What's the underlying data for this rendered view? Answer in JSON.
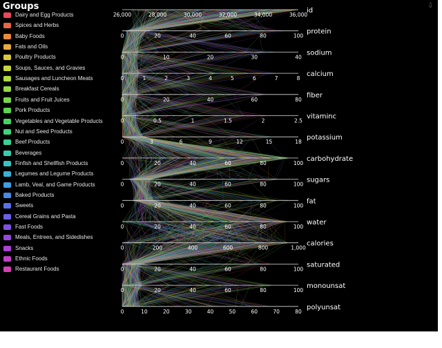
{
  "legend": {
    "title": "Groups",
    "items": [
      {
        "label": "Dairy and Egg Products",
        "color": "#e8475f"
      },
      {
        "label": "Spices and Herbs",
        "color": "#ea6445"
      },
      {
        "label": "Baby Foods",
        "color": "#e88a3a"
      },
      {
        "label": "Fats and Oils",
        "color": "#e8ab3a"
      },
      {
        "label": "Poultry Products",
        "color": "#ddc63c"
      },
      {
        "label": "Soups, Sauces, and Gravies",
        "color": "#c8d43c"
      },
      {
        "label": "Sausages and Luncheon Meats",
        "color": "#b0d83c"
      },
      {
        "label": "Breakfast Cereals",
        "color": "#96d83e"
      },
      {
        "label": "Fruits and Fruit Juices",
        "color": "#78d846"
      },
      {
        "label": "Pork Products",
        "color": "#5cd650"
      },
      {
        "label": "Vegetables and Vegetable Products",
        "color": "#48d462"
      },
      {
        "label": "Nut and Seed Products",
        "color": "#3ed27c"
      },
      {
        "label": "Beef Products",
        "color": "#3ad096"
      },
      {
        "label": "Beverages",
        "color": "#38ccac"
      },
      {
        "label": "Finfish and Shellfish Products",
        "color": "#36c4c2"
      },
      {
        "label": "Legumes and Legume Products",
        "color": "#38b2d6"
      },
      {
        "label": "Lamb, Veal, and Game Products",
        "color": "#3e9ee0"
      },
      {
        "label": "Baked Products",
        "color": "#4888e6"
      },
      {
        "label": "Sweets",
        "color": "#5872ea"
      },
      {
        "label": "Cereal Grains and Pasta",
        "color": "#6a60ea"
      },
      {
        "label": "Fast Foods",
        "color": "#7e52e6"
      },
      {
        "label": "Meals, Entrees, and Sidedishes",
        "color": "#9448de"
      },
      {
        "label": "Snacks",
        "color": "#aa42d4"
      },
      {
        "label": "Ethnic Foods",
        "color": "#c040c6"
      },
      {
        "label": "Restaurant Foods",
        "color": "#d640b4"
      }
    ]
  },
  "chart_data": {
    "type": "parallel",
    "axes": [
      {
        "name": "id",
        "range": [
          26000,
          36000
        ],
        "ticks": [
          "26,000",
          "28,000",
          "30,000",
          "32,000",
          "34,000",
          "36,000"
        ]
      },
      {
        "name": "protein",
        "range": [
          0,
          100
        ],
        "ticks": [
          "0",
          "20",
          "40",
          "60",
          "80",
          "100"
        ]
      },
      {
        "name": "sodium",
        "range": [
          0,
          40
        ],
        "ticks": [
          "0",
          "10",
          "20",
          "30",
          "40"
        ]
      },
      {
        "name": "calcium",
        "range": [
          0,
          8
        ],
        "ticks": [
          "0",
          "1",
          "2",
          "3",
          "4",
          "5",
          "6",
          "7",
          "8"
        ]
      },
      {
        "name": "fiber",
        "range": [
          0,
          80
        ],
        "ticks": [
          "0",
          "20",
          "40",
          "60",
          "80"
        ]
      },
      {
        "name": "vitaminc",
        "range": [
          0,
          2.5
        ],
        "ticks": [
          "0",
          "0.5",
          "1",
          "1.5",
          "2",
          "2.5"
        ]
      },
      {
        "name": "potassium",
        "range": [
          0,
          18
        ],
        "ticks": [
          "0",
          "3",
          "6",
          "9",
          "12",
          "15",
          "18"
        ]
      },
      {
        "name": "carbohydrate",
        "range": [
          0,
          100
        ],
        "ticks": [
          "0",
          "20",
          "40",
          "60",
          "80",
          "100"
        ]
      },
      {
        "name": "sugars",
        "range": [
          0,
          100
        ],
        "ticks": [
          "0",
          "20",
          "40",
          "60",
          "80",
          "100"
        ]
      },
      {
        "name": "fat",
        "range": [
          0,
          100
        ],
        "ticks": [
          "0",
          "20",
          "40",
          "60",
          "80",
          "100"
        ]
      },
      {
        "name": "water",
        "range": [
          0,
          100
        ],
        "ticks": [
          "0",
          "20",
          "40",
          "60",
          "80",
          "100"
        ]
      },
      {
        "name": "calories",
        "range": [
          0,
          1000
        ],
        "ticks": [
          "0",
          "200",
          "400",
          "600",
          "800",
          "1,000"
        ]
      },
      {
        "name": "saturated",
        "range": [
          0,
          100
        ],
        "ticks": [
          "0",
          "20",
          "40",
          "60",
          "80",
          "100"
        ]
      },
      {
        "name": "monounsat",
        "range": [
          0,
          100
        ],
        "ticks": [
          "0",
          "20",
          "40",
          "60",
          "80",
          "100"
        ]
      },
      {
        "name": "polyunsat",
        "range": [
          0,
          80
        ],
        "ticks": [
          "0",
          "10",
          "20",
          "30",
          "40",
          "50",
          "60",
          "70",
          "80"
        ]
      }
    ]
  }
}
